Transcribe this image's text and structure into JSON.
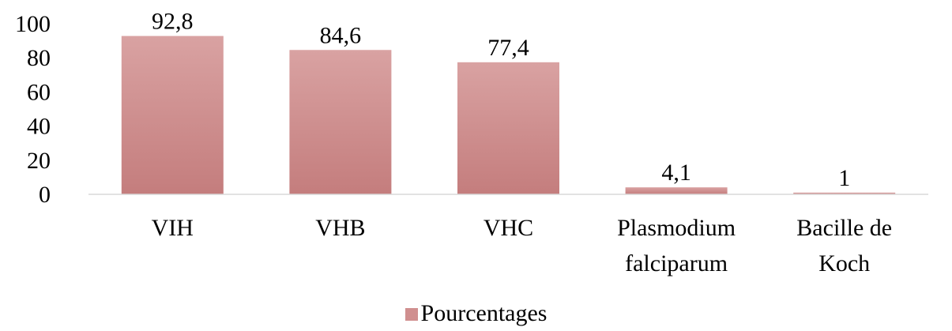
{
  "chart_data": {
    "type": "bar",
    "title": "",
    "xlabel": "",
    "ylabel": "",
    "categories": [
      [
        "VIH"
      ],
      [
        "VHB"
      ],
      [
        "VHC"
      ],
      [
        "Plasmodium",
        "falciparum"
      ],
      [
        "Bacille de",
        "Koch"
      ]
    ],
    "series": [
      {
        "name": "Pourcentages",
        "values": [
          92.8,
          84.6,
          77.4,
          4.1,
          1
        ],
        "value_labels": [
          "92,8",
          "84,6",
          "77,4",
          "4,1",
          "1"
        ],
        "color": "#d08f8f"
      }
    ],
    "ylim": [
      0,
      100
    ],
    "yticks": [
      0,
      20,
      40,
      60,
      80,
      100
    ],
    "ytick_labels": [
      "0",
      "20",
      "40",
      "60",
      "80",
      "100"
    ],
    "grid": false,
    "legend_position": "bottom"
  },
  "colors": {
    "bar_top": "#d9a2a2",
    "bar_bottom": "#c47d7d",
    "axis": "#d9d9d9"
  }
}
